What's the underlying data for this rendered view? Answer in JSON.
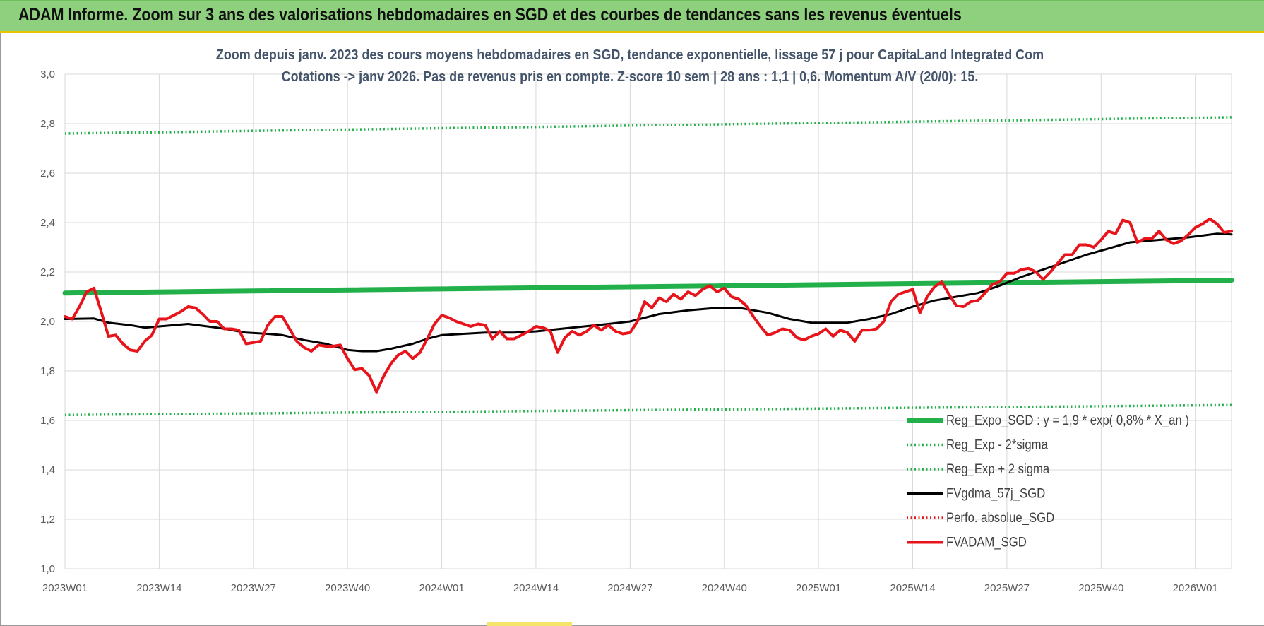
{
  "banner": {
    "title": "ADAM Informe. Zoom sur 3 ans des valorisations hebdomadaires en SGD et des courbes de tendances sans les revenus éventuels"
  },
  "chart_data": {
    "type": "line",
    "title": "Zoom depuis janv. 2023 des cours moyens hebdomadaires en SGD, tendance exponentielle, lissage 57 j pour CapitaLand Integrated Com",
    "subtitle": "Cotations -> janv 2026. Pas de revenus pris en compte. Z-score 10 sem | 28 ans : 1,1 | 0,6. Momentum A/V (20/0): 15.",
    "xlabel": "",
    "ylabel": "",
    "ylim": [
      1.0,
      3.0
    ],
    "yticks": [
      "1,0",
      "1,2",
      "1,4",
      "1,6",
      "1,8",
      "2,0",
      "2,2",
      "2,4",
      "2,6",
      "2,8",
      "3,0"
    ],
    "x_index_range": [
      0,
      161
    ],
    "xticks": [
      {
        "index": 0,
        "label": "2023W01"
      },
      {
        "index": 13,
        "label": "2023W14"
      },
      {
        "index": 26,
        "label": "2023W27"
      },
      {
        "index": 39,
        "label": "2023W40"
      },
      {
        "index": 52,
        "label": "2024W01"
      },
      {
        "index": 65,
        "label": "2024W14"
      },
      {
        "index": 78,
        "label": "2024W27"
      },
      {
        "index": 91,
        "label": "2024W40"
      },
      {
        "index": 104,
        "label": "2025W01"
      },
      {
        "index": 117,
        "label": "2025W14"
      },
      {
        "index": 130,
        "label": "2025W27"
      },
      {
        "index": 143,
        "label": "2025W40"
      },
      {
        "index": 156,
        "label": "2026W01"
      }
    ],
    "grid": true,
    "legend_position": "bottom-right",
    "series": [
      {
        "name": "Reg_Expo_SGD : y = 1,9 * exp( 0,8% * X_an )",
        "color": "#22b04b",
        "style": "solid-thick",
        "points": [
          [
            0,
            2.115
          ],
          [
            161,
            2.167
          ]
        ]
      },
      {
        "name": "Reg_Exp - 2*sigma",
        "color": "#22b04b",
        "style": "dotted",
        "points": [
          [
            0,
            1.622
          ],
          [
            161,
            1.662
          ]
        ]
      },
      {
        "name": "Reg_Exp + 2 sigma",
        "color": "#22b04b",
        "style": "dotted",
        "points": [
          [
            0,
            2.76
          ],
          [
            161,
            2.826
          ]
        ]
      },
      {
        "name": "FVgdma_57j_SGD",
        "color": "#000000",
        "style": "solid",
        "points": [
          [
            0,
            2.01
          ],
          [
            4,
            2.012
          ],
          [
            6,
            1.995
          ],
          [
            9,
            1.985
          ],
          [
            11,
            1.975
          ],
          [
            13,
            1.98
          ],
          [
            17,
            1.99
          ],
          [
            21,
            1.975
          ],
          [
            25,
            1.955
          ],
          [
            28,
            1.95
          ],
          [
            30,
            1.945
          ],
          [
            33,
            1.925
          ],
          [
            36,
            1.91
          ],
          [
            39,
            1.885
          ],
          [
            41,
            1.88
          ],
          [
            43,
            1.88
          ],
          [
            45,
            1.89
          ],
          [
            48,
            1.91
          ],
          [
            50,
            1.93
          ],
          [
            52,
            1.945
          ],
          [
            55,
            1.95
          ],
          [
            58,
            1.955
          ],
          [
            62,
            1.955
          ],
          [
            65,
            1.96
          ],
          [
            70,
            1.975
          ],
          [
            75,
            1.99
          ],
          [
            78,
            2.0
          ],
          [
            82,
            2.03
          ],
          [
            86,
            2.045
          ],
          [
            90,
            2.055
          ],
          [
            93,
            2.055
          ],
          [
            97,
            2.035
          ],
          [
            100,
            2.01
          ],
          [
            103,
            1.995
          ],
          [
            108,
            1.995
          ],
          [
            111,
            2.01
          ],
          [
            114,
            2.03
          ],
          [
            117,
            2.06
          ],
          [
            120,
            2.085
          ],
          [
            123,
            2.1
          ],
          [
            126,
            2.115
          ],
          [
            129,
            2.145
          ],
          [
            132,
            2.18
          ],
          [
            135,
            2.21
          ],
          [
            138,
            2.24
          ],
          [
            141,
            2.27
          ],
          [
            144,
            2.295
          ],
          [
            147,
            2.32
          ],
          [
            151,
            2.33
          ],
          [
            155,
            2.34
          ],
          [
            159,
            2.355
          ],
          [
            161,
            2.352
          ]
        ]
      },
      {
        "name": "Perfo. absolue_SGD",
        "color": "#e41a1c",
        "style": "dotted",
        "points": []
      },
      {
        "name": "FVADAM_SGD",
        "color": "#e8141c",
        "style": "solid-thick",
        "points": [
          [
            0,
            2.02
          ],
          [
            1,
            2.01
          ],
          [
            2,
            2.06
          ],
          [
            3,
            2.12
          ],
          [
            4,
            2.135
          ],
          [
            5,
            2.04
          ],
          [
            6,
            1.94
          ],
          [
            7,
            1.945
          ],
          [
            8,
            1.91
          ],
          [
            9,
            1.885
          ],
          [
            10,
            1.88
          ],
          [
            11,
            1.92
          ],
          [
            12,
            1.945
          ],
          [
            13,
            2.01
          ],
          [
            14,
            2.01
          ],
          [
            15,
            2.025
          ],
          [
            16,
            2.04
          ],
          [
            17,
            2.06
          ],
          [
            18,
            2.055
          ],
          [
            19,
            2.03
          ],
          [
            20,
            2.0
          ],
          [
            21,
            2.0
          ],
          [
            22,
            1.97
          ],
          [
            23,
            1.97
          ],
          [
            24,
            1.965
          ],
          [
            25,
            1.91
          ],
          [
            26,
            1.915
          ],
          [
            27,
            1.92
          ],
          [
            28,
            1.985
          ],
          [
            29,
            2.02
          ],
          [
            30,
            2.02
          ],
          [
            31,
            1.97
          ],
          [
            32,
            1.92
          ],
          [
            33,
            1.895
          ],
          [
            34,
            1.88
          ],
          [
            35,
            1.905
          ],
          [
            36,
            1.9
          ],
          [
            37,
            1.9
          ],
          [
            38,
            1.905
          ],
          [
            39,
            1.85
          ],
          [
            40,
            1.805
          ],
          [
            41,
            1.81
          ],
          [
            42,
            1.78
          ],
          [
            43,
            1.715
          ],
          [
            44,
            1.78
          ],
          [
            45,
            1.83
          ],
          [
            46,
            1.865
          ],
          [
            47,
            1.88
          ],
          [
            48,
            1.85
          ],
          [
            49,
            1.875
          ],
          [
            50,
            1.93
          ],
          [
            51,
            1.99
          ],
          [
            52,
            2.025
          ],
          [
            53,
            2.015
          ],
          [
            54,
            2.0
          ],
          [
            55,
            1.99
          ],
          [
            56,
            1.98
          ],
          [
            57,
            1.99
          ],
          [
            58,
            1.985
          ],
          [
            59,
            1.93
          ],
          [
            60,
            1.96
          ],
          [
            61,
            1.93
          ],
          [
            62,
            1.93
          ],
          [
            63,
            1.945
          ],
          [
            64,
            1.96
          ],
          [
            65,
            1.98
          ],
          [
            66,
            1.975
          ],
          [
            67,
            1.96
          ],
          [
            68,
            1.875
          ],
          [
            69,
            1.935
          ],
          [
            70,
            1.96
          ],
          [
            71,
            1.945
          ],
          [
            72,
            1.96
          ],
          [
            73,
            1.985
          ],
          [
            74,
            1.965
          ],
          [
            75,
            1.985
          ],
          [
            76,
            1.96
          ],
          [
            77,
            1.95
          ],
          [
            78,
            1.955
          ],
          [
            79,
            2.0
          ],
          [
            80,
            2.08
          ],
          [
            81,
            2.055
          ],
          [
            82,
            2.095
          ],
          [
            83,
            2.08
          ],
          [
            84,
            2.11
          ],
          [
            85,
            2.09
          ],
          [
            86,
            2.12
          ],
          [
            87,
            2.105
          ],
          [
            88,
            2.13
          ],
          [
            89,
            2.145
          ],
          [
            90,
            2.12
          ],
          [
            91,
            2.135
          ],
          [
            92,
            2.1
          ],
          [
            93,
            2.09
          ],
          [
            94,
            2.065
          ],
          [
            95,
            2.02
          ],
          [
            96,
            1.98
          ],
          [
            97,
            1.945
          ],
          [
            98,
            1.955
          ],
          [
            99,
            1.97
          ],
          [
            100,
            1.965
          ],
          [
            101,
            1.935
          ],
          [
            102,
            1.925
          ],
          [
            103,
            1.94
          ],
          [
            104,
            1.95
          ],
          [
            105,
            1.97
          ],
          [
            106,
            1.94
          ],
          [
            107,
            1.965
          ],
          [
            108,
            1.955
          ],
          [
            109,
            1.92
          ],
          [
            110,
            1.965
          ],
          [
            111,
            1.965
          ],
          [
            112,
            1.97
          ],
          [
            113,
            2.0
          ],
          [
            114,
            2.08
          ],
          [
            115,
            2.11
          ],
          [
            116,
            2.12
          ],
          [
            117,
            2.13
          ],
          [
            118,
            2.035
          ],
          [
            119,
            2.1
          ],
          [
            120,
            2.14
          ],
          [
            121,
            2.16
          ],
          [
            122,
            2.11
          ],
          [
            123,
            2.065
          ],
          [
            124,
            2.06
          ],
          [
            125,
            2.08
          ],
          [
            126,
            2.085
          ],
          [
            127,
            2.115
          ],
          [
            128,
            2.15
          ],
          [
            129,
            2.16
          ],
          [
            130,
            2.195
          ],
          [
            131,
            2.195
          ],
          [
            132,
            2.21
          ],
          [
            133,
            2.215
          ],
          [
            134,
            2.2
          ],
          [
            135,
            2.17
          ],
          [
            136,
            2.2
          ],
          [
            137,
            2.235
          ],
          [
            138,
            2.27
          ],
          [
            139,
            2.27
          ],
          [
            140,
            2.31
          ],
          [
            141,
            2.31
          ],
          [
            142,
            2.3
          ],
          [
            143,
            2.33
          ],
          [
            144,
            2.365
          ],
          [
            145,
            2.355
          ],
          [
            146,
            2.41
          ],
          [
            147,
            2.4
          ],
          [
            148,
            2.32
          ],
          [
            149,
            2.335
          ],
          [
            150,
            2.335
          ],
          [
            151,
            2.365
          ],
          [
            152,
            2.33
          ],
          [
            153,
            2.315
          ],
          [
            154,
            2.325
          ],
          [
            155,
            2.35
          ],
          [
            156,
            2.38
          ],
          [
            157,
            2.395
          ],
          [
            158,
            2.415
          ],
          [
            159,
            2.395
          ],
          [
            160,
            2.36
          ],
          [
            161,
            2.365
          ]
        ]
      }
    ]
  }
}
